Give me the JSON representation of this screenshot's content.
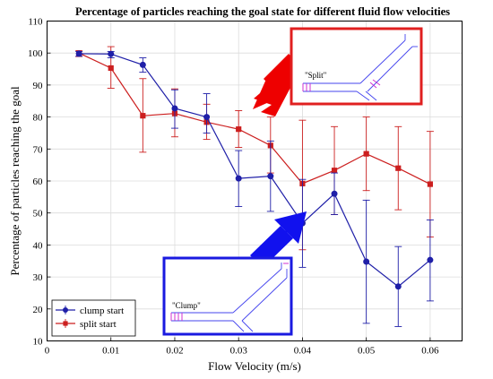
{
  "chart_data": {
    "type": "line",
    "title": "Percentage of particles reaching the goal state for different fluid flow velocities",
    "xlabel": "Flow Velocity (m/s)",
    "ylabel": "Percentage of particles reaching the goal",
    "xlim": [
      0,
      0.065
    ],
    "ylim": [
      10,
      110
    ],
    "xticks": [
      "0",
      "0.01",
      "0.02",
      "0.03",
      "0.04",
      "0.05",
      "0.06"
    ],
    "xtick_values": [
      0,
      0.01,
      0.02,
      0.03,
      0.04,
      0.05,
      0.06
    ],
    "yticks": [
      "10",
      "20",
      "30",
      "40",
      "50",
      "60",
      "70",
      "80",
      "90",
      "100",
      "110"
    ],
    "ytick_values": [
      10,
      20,
      30,
      40,
      50,
      60,
      70,
      80,
      90,
      100,
      110
    ],
    "grid": true,
    "legend_position": "bottom-left",
    "x": [
      0.005,
      0.01,
      0.015,
      0.02,
      0.025,
      0.03,
      0.035,
      0.04,
      0.045,
      0.05,
      0.055,
      0.06
    ],
    "series": [
      {
        "name": "clump start",
        "color": "#1f1fa8",
        "marker": "circle",
        "values": [
          99.8,
          99.7,
          96.3,
          82.7,
          80.0,
          60.8,
          61.5,
          46.8,
          56.0,
          34.8,
          27.0,
          35.3
        ],
        "err_low": [
          99.0,
          98.5,
          94.0,
          76.5,
          75.0,
          52.0,
          50.5,
          33.0,
          49.5,
          15.5,
          14.5,
          22.5
        ],
        "err_high": [
          100.5,
          100.5,
          98.5,
          88.5,
          87.3,
          69.5,
          72.5,
          60.5,
          62.5,
          54.0,
          39.5,
          47.8
        ]
      },
      {
        "name": "split start",
        "color": "#cc1f1f",
        "marker": "square",
        "values": [
          100.0,
          95.3,
          80.4,
          81.1,
          78.4,
          76.2,
          71.1,
          59.2,
          63.3,
          68.5,
          64.0,
          59.0
        ],
        "err_low": [
          98.9,
          89.0,
          69.0,
          73.8,
          73.0,
          70.5,
          62.5,
          38.5,
          49.5,
          57.0,
          51.0,
          42.5
        ],
        "err_high": [
          100.7,
          102.0,
          92.0,
          88.8,
          84.0,
          82.0,
          80.0,
          79.0,
          77.0,
          80.0,
          77.0,
          75.5
        ]
      }
    ],
    "annotations": [
      {
        "label": "\"Split\"",
        "frame_color": "#e02020"
      },
      {
        "label": "\"Clump\"",
        "frame_color": "#1a1ae0"
      }
    ]
  }
}
